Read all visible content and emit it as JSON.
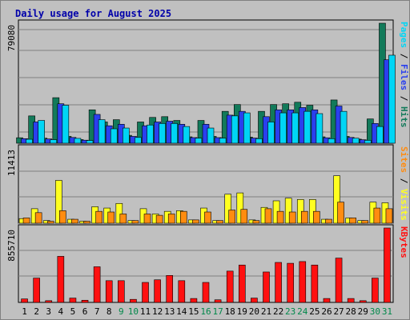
{
  "chart_data": {
    "type": "bar",
    "title": "Daily usage for August 2025",
    "categories": [
      "1",
      "2",
      "3",
      "4",
      "5",
      "6",
      "7",
      "8",
      "9",
      "10",
      "11",
      "12",
      "13",
      "14",
      "15",
      "16",
      "17",
      "18",
      "19",
      "20",
      "21",
      "22",
      "23",
      "24",
      "25",
      "26",
      "27",
      "28",
      "29",
      "30",
      "31"
    ],
    "weekend_days": [
      "9",
      "10",
      "16",
      "17",
      "23",
      "24",
      "30",
      "31"
    ],
    "panels": [
      {
        "id": "top",
        "ymax": 79080,
        "ymax_label": "79080",
        "series": [
          {
            "name": "Hits",
            "color": "#127a5a",
            "values": [
              3600,
              18000,
              3300,
              30000,
              4500,
              2400,
              22000,
              14000,
              15500,
              5200,
              14000,
              17000,
              17500,
              15000,
              4200,
              15000,
              4500,
              21000,
              25500,
              4000,
              21000,
              25500,
              26000,
              27000,
              25000,
              4200,
              28500,
              4500,
              2700,
              16000,
              79080
            ]
          },
          {
            "name": "Files",
            "color": "#2a40ee",
            "values": [
              3000,
              14000,
              2800,
              26000,
              3800,
              2000,
              19000,
              11500,
              12500,
              4500,
              11500,
              14000,
              14500,
              12500,
              3700,
              12500,
              3700,
              18500,
              21000,
              3400,
              17500,
              22000,
              22000,
              23500,
              22000,
              3600,
              24500,
              3800,
              2300,
              13000,
              55000
            ]
          },
          {
            "name": "Pages",
            "color": "#00d5f5",
            "values": [
              2600,
              15000,
              2300,
              25000,
              3200,
              1800,
              15500,
              9500,
              10000,
              3800,
              12000,
              13000,
              13000,
              11000,
              3300,
              10000,
              3300,
              18000,
              20000,
              3000,
              14000,
              20000,
              20000,
              21000,
              19500,
              3000,
              21000,
              3300,
              1900,
              11000,
              58000
            ]
          }
        ]
      },
      {
        "id": "middle",
        "ymax": 11413,
        "ymax_label": "11413",
        "series": [
          {
            "name": "Visits",
            "color": "#ffff20",
            "values": [
              700,
              2200,
              400,
              6500,
              600,
              300,
              2500,
              2300,
              3000,
              400,
              2200,
              1400,
              1800,
              1900,
              500,
              2300,
              400,
              4400,
              4600,
              500,
              2400,
              3400,
              3800,
              3600,
              3600,
              600,
              7200,
              800,
              400,
              3200,
              3100
            ]
          },
          {
            "name": "Sites",
            "color": "#ff8c10",
            "values": [
              800,
              1600,
              300,
              1900,
              600,
              300,
              1800,
              1700,
              1400,
              400,
              1400,
              1200,
              1400,
              1800,
              500,
              1700,
              400,
              2000,
              2100,
              400,
              2200,
              1800,
              1700,
              1800,
              1800,
              600,
              3200,
              800,
              400,
              2300,
              2200
            ]
          }
        ]
      },
      {
        "id": "bottom",
        "ymax": 855710,
        "ymax_label": "855710",
        "series": [
          {
            "name": "KBytes",
            "color": "#ff1010",
            "values": [
              40000,
              280000,
              20000,
              530000,
              50000,
              25000,
              410000,
              250000,
              250000,
              35000,
              230000,
              260000,
              310000,
              250000,
              45000,
              230000,
              30000,
              360000,
              430000,
              50000,
              350000,
              460000,
              450000,
              470000,
              430000,
              45000,
              510000,
              45000,
              20000,
              280000,
              855710
            ]
          }
        ]
      }
    ]
  }
}
